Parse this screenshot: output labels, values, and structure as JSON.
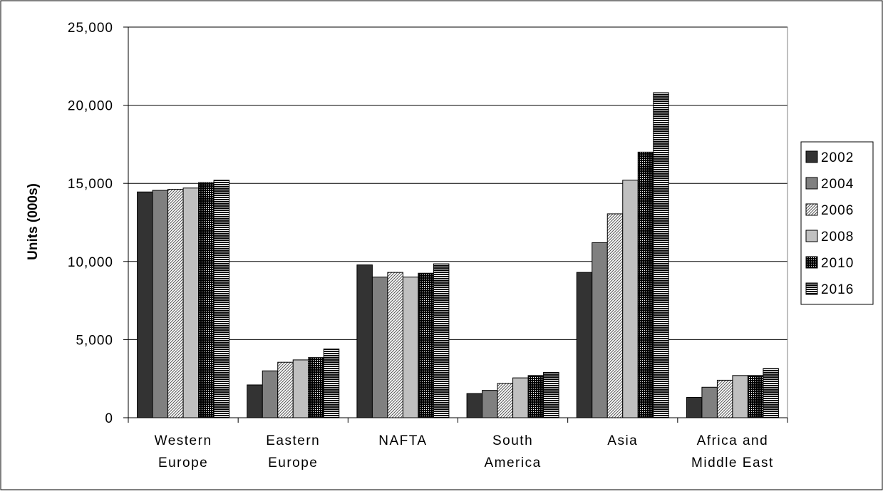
{
  "chart_data": {
    "type": "bar",
    "title": "",
    "xlabel": "",
    "ylabel": "Units (000s)",
    "ylim": [
      0,
      25000
    ],
    "yticks": [
      "0",
      "5,000",
      "10,000",
      "15,000",
      "20,000",
      "25,000"
    ],
    "grid": true,
    "legend_position": "right",
    "categories": [
      [
        "Western",
        "Europe"
      ],
      [
        "Eastern",
        "Europe"
      ],
      [
        "NAFTA"
      ],
      [
        "South",
        "America"
      ],
      [
        "Asia"
      ],
      [
        "Africa and",
        "Middle East"
      ]
    ],
    "series": [
      {
        "name": "2002",
        "pattern": "solid-dark",
        "color": "#333333",
        "values": [
          14450,
          2100,
          9780,
          1550,
          9300,
          1300
        ]
      },
      {
        "name": "2004",
        "pattern": "solid-gray",
        "color": "#808080",
        "values": [
          14550,
          3000,
          9000,
          1750,
          11200,
          1950
        ]
      },
      {
        "name": "2006",
        "pattern": "diagonal",
        "color": "#ffffff",
        "values": [
          14620,
          3550,
          9300,
          2200,
          13050,
          2400
        ]
      },
      {
        "name": "2008",
        "pattern": "solid-light",
        "color": "#c0c0c0",
        "values": [
          14700,
          3700,
          9000,
          2550,
          15200,
          2700
        ]
      },
      {
        "name": "2010",
        "pattern": "dots",
        "color": "#111111",
        "values": [
          15050,
          3850,
          9250,
          2700,
          17000,
          2700
        ]
      },
      {
        "name": "2016",
        "pattern": "horizontal",
        "color": "#111111",
        "values": [
          15200,
          4400,
          9850,
          2900,
          20800,
          3150
        ]
      }
    ]
  }
}
